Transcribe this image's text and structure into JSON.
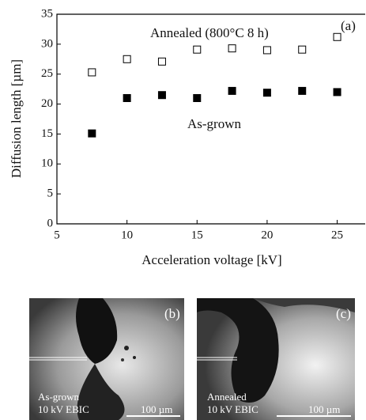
{
  "chart_data": {
    "type": "scatter",
    "x_label": "Acceleration voltage [kV]",
    "y_label": "Diffusion length [µm]",
    "panel_label": "(a)",
    "x": [
      7.5,
      10,
      12.5,
      15,
      17.5,
      20,
      22.5,
      25
    ],
    "series": [
      {
        "name": "Annealed (800°C 8 h)",
        "color": "#000000",
        "filled": false,
        "values": [
          25.3,
          27.5,
          27.1,
          29.1,
          29.3,
          29.0,
          29.1,
          31.2
        ]
      },
      {
        "name": "As-grown",
        "color": "#000000",
        "filled": true,
        "values": [
          15.1,
          21.0,
          21.5,
          21.0,
          22.2,
          21.9,
          22.2,
          22.0
        ]
      }
    ],
    "xlim": [
      5,
      27
    ],
    "xticks": [
      5,
      10,
      15,
      20,
      25
    ],
    "ylim": [
      0,
      35
    ],
    "yticks": [
      0,
      5,
      10,
      15,
      20,
      25,
      30,
      35
    ],
    "grid": false
  },
  "panels": [
    {
      "label": "(b)",
      "lines": [
        "As-grown",
        "10 kV EBIC"
      ],
      "scale_bar": "100 µm"
    },
    {
      "label": "(c)",
      "lines": [
        "Annealed",
        "10 kV EBIC"
      ],
      "scale_bar": "100 µm"
    }
  ]
}
